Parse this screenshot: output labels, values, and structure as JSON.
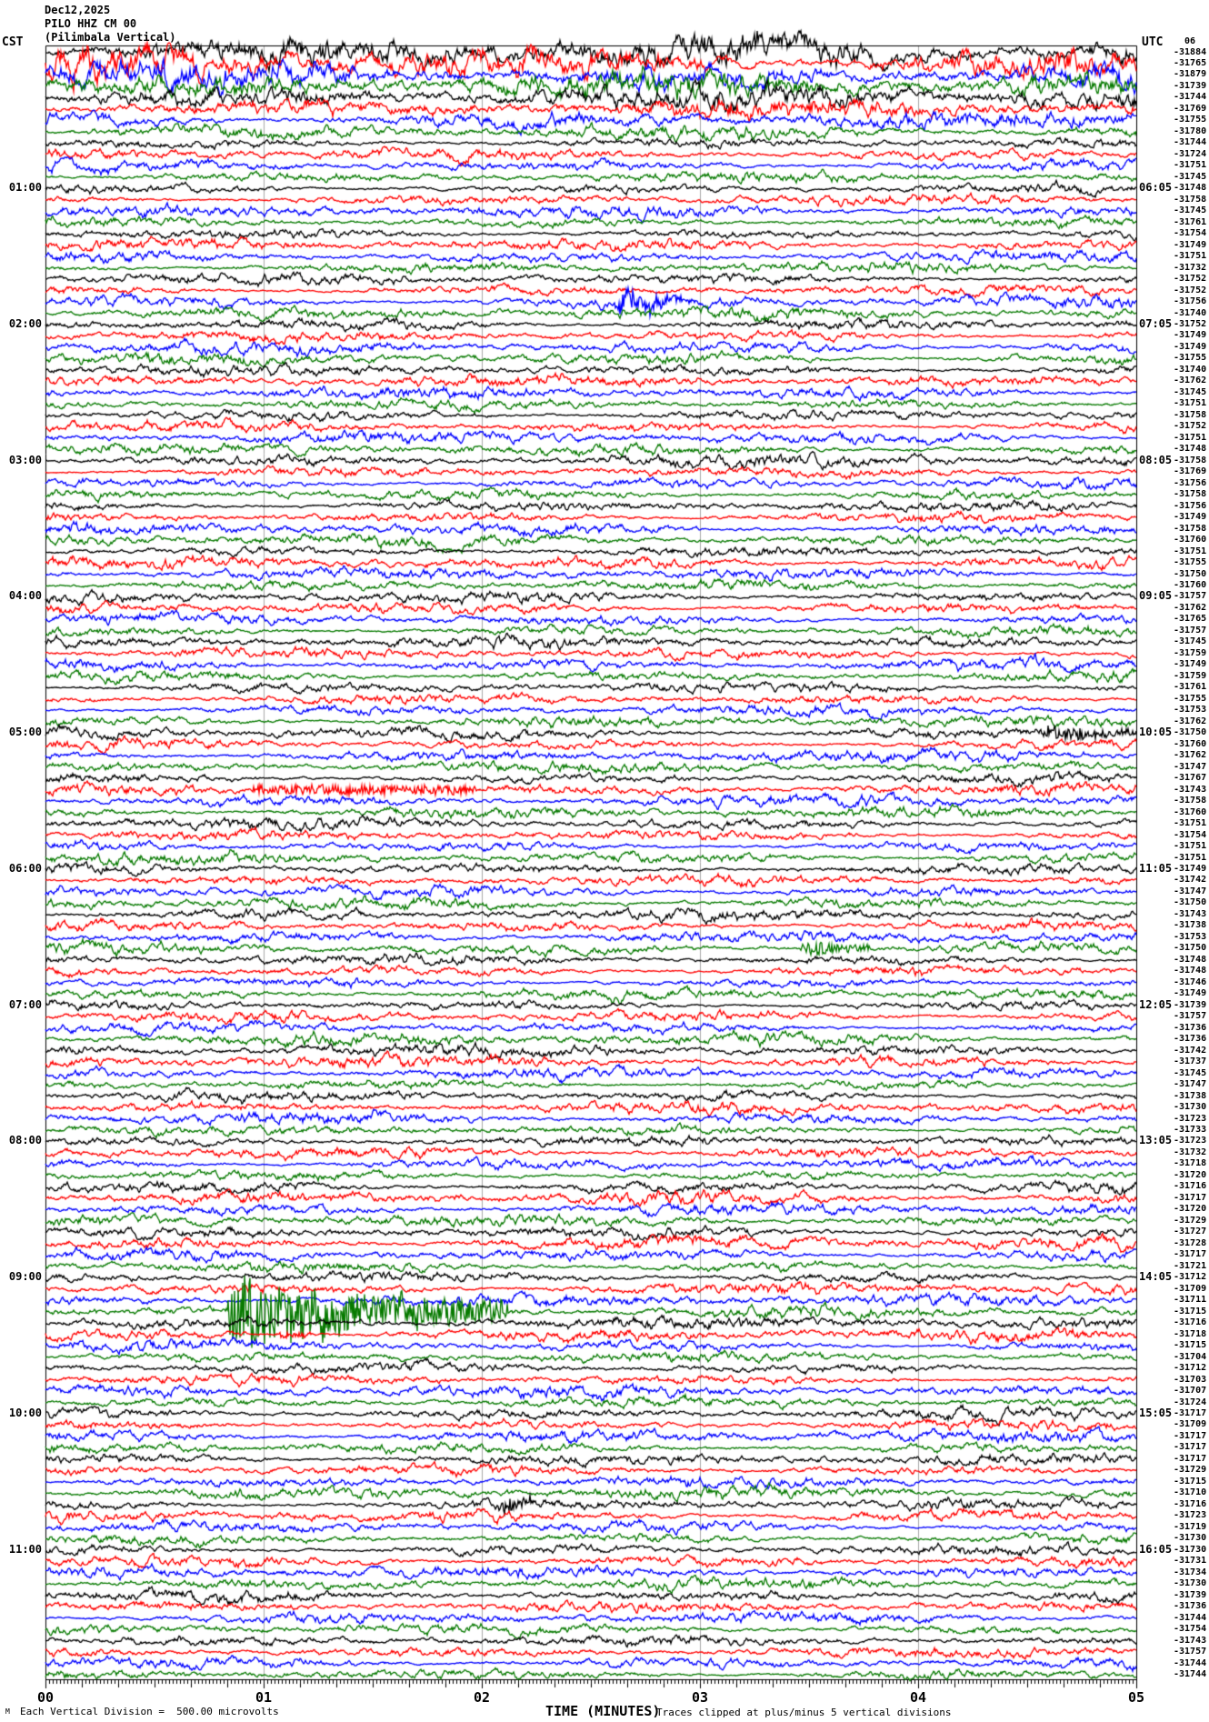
{
  "header": {
    "date_line": "Dec12,2025",
    "station_line": "PILO HHZ CM 00",
    "site_line": "(Pilimbala Vertical)",
    "left_tz_label": "CST",
    "right_tz_label": "UTC",
    "top_partial_value": "06"
  },
  "left_axis_hours": [
    "01:00",
    "02:00",
    "03:00",
    "04:00",
    "05:00",
    "06:00",
    "07:00",
    "08:00",
    "09:00",
    "10:00",
    "11:00"
  ],
  "right_axis_hours": [
    "06:05",
    "07:05",
    "08:05",
    "09:05",
    "10:05",
    "11:05",
    "12:05",
    "13:05",
    "14:05",
    "15:05",
    "16:05"
  ],
  "x_axis": {
    "label": "TIME (MINUTES)",
    "ticks": [
      "00",
      "01",
      "02",
      "03",
      "04",
      "05"
    ]
  },
  "footer": {
    "corner_mark": "M",
    "scale_note": "Each Vertical Division =  500.00 microvolts",
    "clip_note": "Traces clipped at plus/minus 5 vertical divisions"
  },
  "chart_data": {
    "type": "line",
    "kind": "helicorder-seismogram",
    "title": "PILO HHZ CM 00 (Pilimbala Vertical) - Dec 12, 2025",
    "station": "PILO",
    "channel": "HHZ",
    "network": "CM",
    "location_code": "00",
    "site_name": "Pilimbala Vertical",
    "date": "Dec12,2025",
    "rows": 144,
    "minutes_per_row": 5,
    "rows_per_hour": 12,
    "x_range_minutes": [
      0,
      5
    ],
    "clip_divisions": 5,
    "row_color_cycle": [
      "#000000",
      "#ff0000",
      "#0000ff",
      "#077a00"
    ],
    "gridline_color": "#a8a8a8",
    "first_hour_label_row": 12,
    "head_amp_factors": [
      3.0,
      3.0,
      2.7,
      2.4,
      2.1,
      1.8,
      1.5,
      1.25
    ],
    "trace_end_values": [
      -31884,
      -31765,
      -31879,
      -31739,
      -31744,
      -31769,
      -31755,
      -31780,
      -31744,
      -31724,
      -31751,
      -31745,
      -31748,
      -31758,
      -31745,
      -31761,
      -31754,
      -31749,
      -31751,
      -31732,
      -31752,
      -31752,
      -31756,
      -31740,
      -31752,
      -31749,
      -31749,
      -31755,
      -31740,
      -31762,
      -31745,
      -31751,
      -31758,
      -31752,
      -31751,
      -31748,
      -31758,
      -31769,
      -31756,
      -31758,
      -31756,
      -31749,
      -31758,
      -31760,
      -31751,
      -31755,
      -31750,
      -31760,
      -31757,
      -31762,
      -31765,
      -31757,
      -31745,
      -31759,
      -31749,
      -31759,
      -31761,
      -31755,
      -31753,
      -31762,
      -31750,
      -31760,
      -31762,
      -31747,
      -31767,
      -31743,
      -31758,
      -31760,
      -31751,
      -31754,
      -31751,
      -31751,
      -31749,
      -31742,
      -31747,
      -31750,
      -31743,
      -31738,
      -31753,
      -31750,
      -31748,
      -31748,
      -31746,
      -31749,
      -31739,
      -31757,
      -31736,
      -31736,
      -31742,
      -31737,
      -31745,
      -31747,
      -31738,
      -31730,
      -31723,
      -31733,
      -31723,
      -31732,
      -31718,
      -31720,
      -31716,
      -31717,
      -31720,
      -31729,
      -31727,
      -31728,
      -31717,
      -31721,
      -31712,
      -31709,
      -31711,
      -31715,
      -31716,
      -31718,
      -31715,
      -31704,
      -31712,
      -31703,
      -31707,
      -31724,
      -31717,
      -31709,
      -31717,
      -31717,
      -31717,
      -31729,
      -31715,
      -31710,
      -31716,
      -31723,
      -31719,
      -31730,
      -31730,
      -31731,
      -31734,
      -31730,
      -31739,
      -31736,
      -31744,
      -31754,
      -31743,
      -31757,
      -31744,
      -31744
    ],
    "events": [
      {
        "row": 22,
        "start_min": 2.6,
        "end_min": 2.92,
        "type": "burst",
        "intensity": 3.0
      },
      {
        "row": 60,
        "start_min": 4.55,
        "end_min": 5.0,
        "type": "burst",
        "intensity": 2.2
      },
      {
        "row": 65,
        "start_min": 0.92,
        "end_min": 1.96,
        "type": "tremor",
        "intensity": 1.0
      },
      {
        "row": 79,
        "start_min": 3.45,
        "end_min": 3.78,
        "type": "burst",
        "intensity": 2.3
      },
      {
        "row": 111,
        "start_min": 0.82,
        "end_min": 2.12,
        "type": "earthquake",
        "intensity": 8.0
      },
      {
        "row": 113,
        "start_min": 1.05,
        "end_min": 1.22,
        "type": "burst",
        "intensity": 1.6
      },
      {
        "row": 128,
        "start_min": 2.06,
        "end_min": 2.3,
        "type": "burst",
        "intensity": 2.0
      }
    ],
    "noise_seed": 20251212
  }
}
